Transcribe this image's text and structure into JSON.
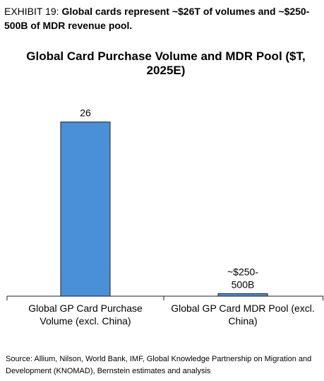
{
  "exhibit": {
    "label": "EXHIBIT 19:",
    "text": "Global cards represent ~$26T of volumes and ~$250-500B of MDR revenue pool."
  },
  "source": "Source: Allium, Nilson, World Bank, IMF, Global Knowledge Partnership on Migration and Development (KNOMAD), Bernstein estimates and analysis",
  "colors": {
    "bar_fill": "#4a90d9",
    "bar_stroke": "#1f1f1f",
    "axis": "#1f1f1f"
  },
  "chart_data": {
    "type": "bar",
    "title": "Global Card Purchase Volume and MDR Pool ($T, 2025E)",
    "categories": [
      [
        "Global GP Card Purchase",
        "Volume (excl. China)"
      ],
      [
        "Global GP Card MDR Pool (excl.",
        "China)"
      ]
    ],
    "values": [
      26,
      0.375
    ],
    "data_labels": [
      [
        "26"
      ],
      [
        "~$250-",
        "500B"
      ]
    ],
    "ylim": [
      0,
      28.7
    ],
    "grid": false,
    "legend": "none"
  }
}
